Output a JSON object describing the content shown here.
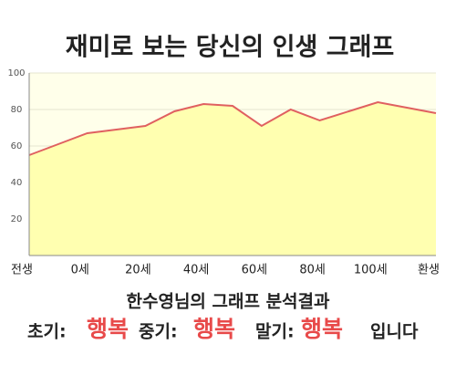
{
  "chart_data": {
    "type": "area",
    "title": "재미로 보는 당신의 인생 그래프",
    "categories": [
      "전생",
      null,
      "0세",
      null,
      "20세",
      null,
      "40세",
      null,
      "60세",
      null,
      "80세",
      null,
      "100세",
      null,
      "환생"
    ],
    "values": [
      55,
      61,
      67,
      69,
      71,
      79,
      83,
      82,
      71,
      80,
      74,
      79,
      84,
      81,
      78
    ],
    "color": "#e06060",
    "fill": "#ffffb0",
    "ylim": [
      0,
      100
    ],
    "yticks": [
      20,
      40,
      60,
      80,
      100
    ],
    "grid": true
  },
  "analysis": {
    "title": "한수영님의 그래프 분석결과",
    "phases": [
      {
        "label": "초기:",
        "value": "행복"
      },
      {
        "label": "중기:",
        "value": "행복"
      },
      {
        "label": "말기:",
        "value": "행복"
      }
    ],
    "suffix": "입니다"
  }
}
